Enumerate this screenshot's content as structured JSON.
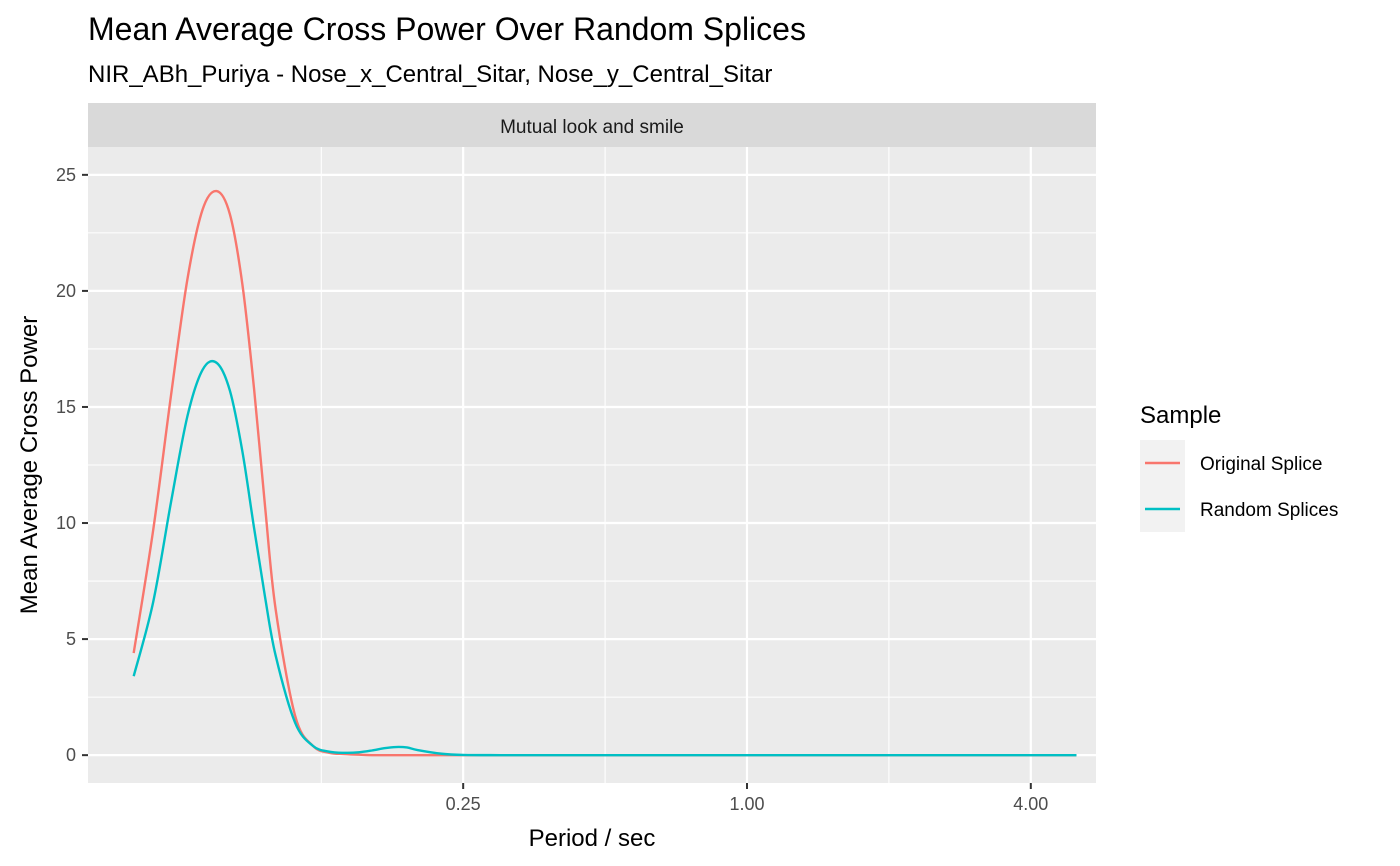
{
  "chart_data": {
    "type": "line",
    "title": "Mean Average Cross Power Over Random Splices",
    "subtitle": "NIR_ABh_Puriya - Nose_x_Central_Sitar, Nose_y_Central_Sitar",
    "facet_label": "Mutual look and smile",
    "xlabel": "Period / sec",
    "ylabel": "Mean Average Cross Power",
    "x_scale": "log2",
    "xlim": [
      0.04,
      5.5
    ],
    "ylim": [
      -1.2,
      26.2
    ],
    "x_ticks": [
      0.25,
      1.0,
      4.0
    ],
    "x_tick_labels": [
      "0.25",
      "1.00",
      "4.00"
    ],
    "y_ticks": [
      0,
      5,
      10,
      15,
      20,
      25
    ],
    "y_tick_labels": [
      "0",
      "5",
      "10",
      "15",
      "20",
      "25"
    ],
    "grid": true,
    "legend": {
      "title": "Sample",
      "position": "right"
    },
    "series": [
      {
        "name": "Original Splice",
        "color": "#F8766D",
        "x": [
          0.05,
          0.055,
          0.06,
          0.065,
          0.07,
          0.075,
          0.08,
          0.085,
          0.09,
          0.095,
          0.1,
          0.11,
          0.12,
          0.13,
          0.14,
          0.15,
          0.16,
          0.18,
          0.2,
          0.25,
          0.3,
          0.5,
          1.0,
          2.0,
          4.0,
          5.0
        ],
        "y": [
          4.4,
          9.7,
          15.5,
          20.5,
          23.5,
          24.3,
          23.3,
          20.3,
          15.8,
          10.7,
          6.3,
          1.7,
          0.4,
          0.1,
          0.05,
          0.02,
          0.0,
          0.0,
          0.0,
          0.0,
          0.0,
          0.0,
          0.0,
          0.0,
          0.0,
          0.0
        ]
      },
      {
        "name": "Random Splices",
        "color": "#00BFC4",
        "x": [
          0.05,
          0.055,
          0.06,
          0.065,
          0.07,
          0.075,
          0.08,
          0.085,
          0.09,
          0.095,
          0.1,
          0.11,
          0.12,
          0.13,
          0.14,
          0.15,
          0.16,
          0.17,
          0.18,
          0.19,
          0.2,
          0.225,
          0.25,
          0.3,
          0.5,
          1.0,
          2.0,
          4.0,
          5.0
        ],
        "y": [
          3.4,
          6.6,
          10.9,
          14.6,
          16.6,
          16.9,
          15.7,
          13.1,
          9.8,
          6.8,
          4.3,
          1.4,
          0.4,
          0.15,
          0.1,
          0.12,
          0.2,
          0.3,
          0.35,
          0.33,
          0.22,
          0.06,
          0.01,
          0.0,
          0.0,
          0.0,
          0.0,
          0.0,
          0.0
        ]
      }
    ]
  }
}
